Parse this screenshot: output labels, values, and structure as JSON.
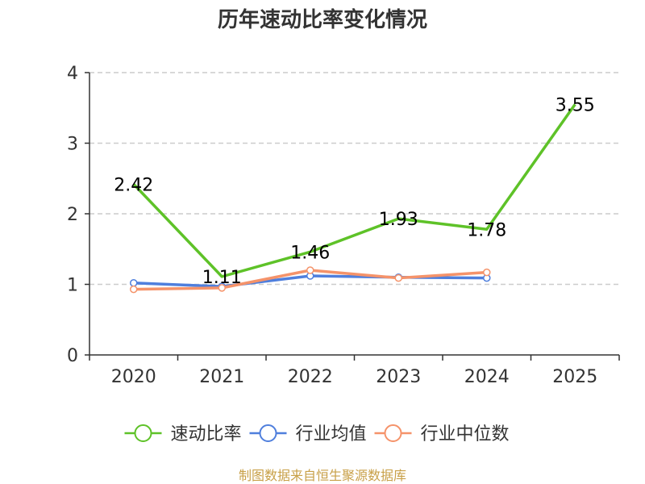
{
  "colors": {
    "series_1": "#5ec228",
    "series_2": "#4f7fdd",
    "series_3": "#f5936a",
    "source": "#c8a048",
    "grid": "#cccccc",
    "axis": "#333333"
  },
  "source_text": "制图数据来自恒生聚源数据库",
  "chart_data": {
    "type": "line",
    "title": "历年速动比率变化情况",
    "xlabel": "",
    "ylabel": "",
    "categories": [
      "2020",
      "2021",
      "2022",
      "2023",
      "2024",
      "2025"
    ],
    "ylim": [
      0,
      4
    ],
    "yticks": [
      0,
      1,
      2,
      3,
      4
    ],
    "grid": true,
    "legend_position": "bottom-center",
    "series": [
      {
        "name": "速动比率",
        "values": [
          2.42,
          1.11,
          1.46,
          1.93,
          1.78,
          3.55
        ],
        "labels": [
          "2.42",
          "1.11",
          "1.46",
          "1.93",
          "1.78",
          "3.55"
        ],
        "show_labels": true
      },
      {
        "name": "行业均值",
        "values": [
          1.02,
          0.97,
          1.12,
          1.1,
          1.09,
          null
        ],
        "show_labels": false
      },
      {
        "name": "行业中位数",
        "values": [
          0.93,
          0.95,
          1.2,
          1.09,
          1.17,
          null
        ],
        "show_labels": false
      }
    ]
  }
}
